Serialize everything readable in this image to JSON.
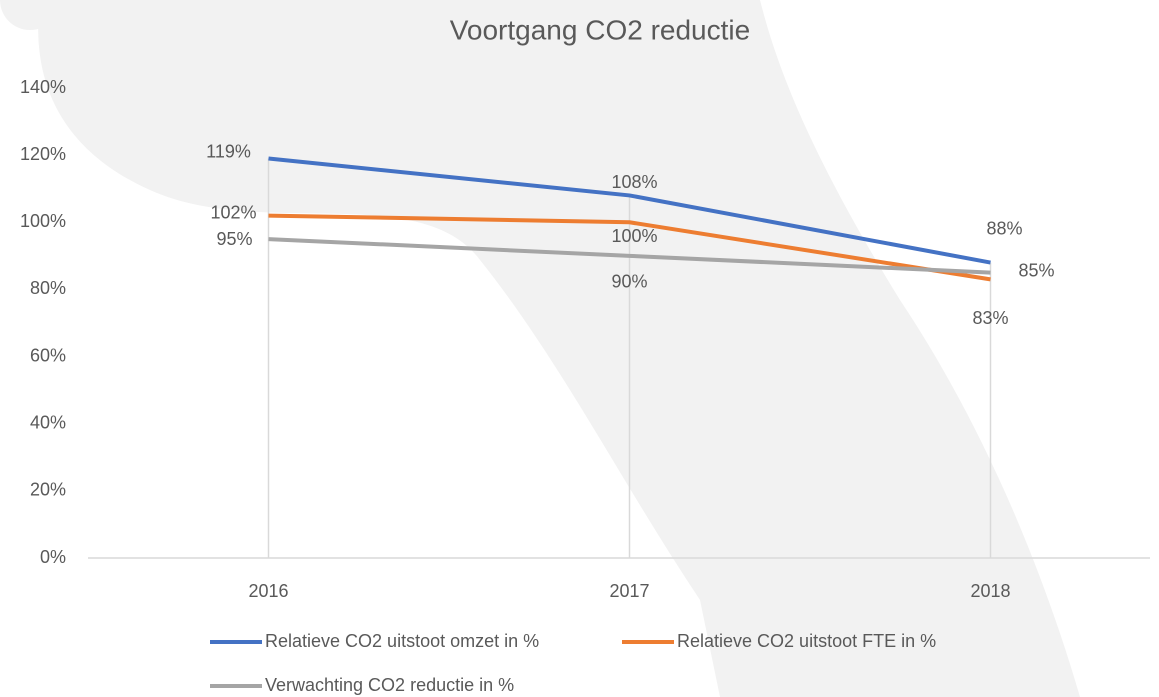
{
  "chart_data": {
    "type": "line",
    "title": "Voortgang CO2 reductie",
    "categories": [
      "2016",
      "2017",
      "2018"
    ],
    "series": [
      {
        "name": "Relatieve CO2 uitstoot omzet in %",
        "color": "#4472c4",
        "values": [
          119,
          108,
          88
        ],
        "value_labels": [
          "119%",
          "108%",
          "88%"
        ]
      },
      {
        "name": "Relatieve CO2 uitstoot FTE in %",
        "color": "#ed7d31",
        "values": [
          102,
          100,
          83
        ],
        "value_labels": [
          "102%",
          "100%",
          "83%"
        ]
      },
      {
        "name": "Verwachting CO2 reductie in %",
        "color": "#a5a5a5",
        "values": [
          95,
          90,
          85
        ],
        "value_labels": [
          "95%",
          "90%",
          "85%"
        ]
      }
    ],
    "ylim": [
      0,
      140
    ],
    "yticks": [
      {
        "value": 0,
        "label": "0%"
      },
      {
        "value": 20,
        "label": "20%"
      },
      {
        "value": 40,
        "label": "40%"
      },
      {
        "value": 60,
        "label": "60%"
      },
      {
        "value": 80,
        "label": "80%"
      },
      {
        "value": 100,
        "label": "100%"
      },
      {
        "value": 120,
        "label": "120%"
      },
      {
        "value": 140,
        "label": "140%"
      }
    ],
    "grid": false
  }
}
